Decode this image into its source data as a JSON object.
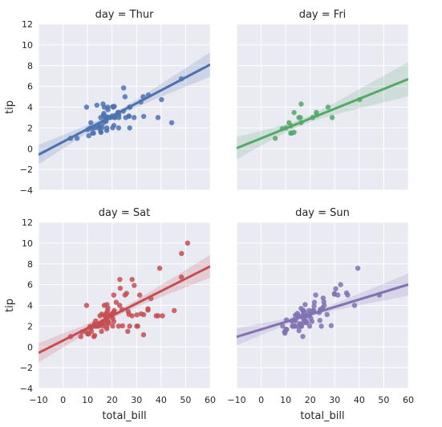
{
  "chart_data": {
    "type": "scatter",
    "style": {
      "panel_background": "#EAEAF2",
      "grid_color": "#ffffff",
      "grid": true
    },
    "shared_axes": {
      "xlabel": "total_bill",
      "ylabel": "tip",
      "xlim": [
        -10,
        60
      ],
      "ylim": [
        -4,
        12
      ],
      "xticks": [
        -10,
        0,
        10,
        20,
        30,
        40,
        50,
        60
      ],
      "yticks": [
        -4,
        -2,
        0,
        2,
        4,
        6,
        8,
        10,
        12
      ]
    },
    "panels": [
      {
        "title": "day = Thur",
        "color": "#4C72B0",
        "points": [
          [
            27.2,
            4.0
          ],
          [
            22.76,
            3.0
          ],
          [
            17.29,
            2.71
          ],
          [
            19.44,
            3.0
          ],
          [
            16.66,
            3.4
          ],
          [
            10.07,
            1.83
          ],
          [
            32.68,
            5.0
          ],
          [
            15.98,
            2.03
          ],
          [
            34.83,
            5.17
          ],
          [
            13.03,
            2.0
          ],
          [
            18.28,
            4.0
          ],
          [
            24.71,
            5.85
          ],
          [
            21.16,
            3.0
          ],
          [
            28.97,
            3.0
          ],
          [
            22.49,
            3.5
          ],
          [
            5.75,
            1.0
          ],
          [
            16.32,
            4.3
          ],
          [
            22.75,
            3.25
          ],
          [
            40.17,
            4.73
          ],
          [
            27.28,
            4.0
          ],
          [
            12.03,
            1.5
          ],
          [
            21.01,
            3.0
          ],
          [
            12.46,
            1.5
          ],
          [
            11.35,
            2.5
          ],
          [
            15.38,
            3.0
          ],
          [
            44.3,
            2.5
          ],
          [
            22.42,
            3.48
          ],
          [
            20.92,
            4.08
          ],
          [
            15.36,
            1.64
          ],
          [
            20.29,
            4.06
          ],
          [
            13.81,
            4.19
          ],
          [
            11.02,
            1.98
          ],
          [
            18.29,
            3.76
          ],
          [
            17.59,
            2.64
          ],
          [
            20.08,
            3.15
          ],
          [
            16.45,
            2.47
          ],
          [
            3.07,
            1.0
          ],
          [
            20.23,
            2.01
          ],
          [
            15.01,
            2.09
          ],
          [
            12.02,
            1.97
          ],
          [
            17.07,
            3.0
          ],
          [
            26.86,
            3.14
          ],
          [
            25.28,
            5.0
          ],
          [
            14.73,
            2.2
          ],
          [
            10.51,
            1.25
          ],
          [
            17.92,
            3.08
          ],
          [
            27.18,
            2.0
          ],
          [
            22.67,
            2.0
          ],
          [
            17.82,
            1.75
          ],
          [
            18.78,
            3.0
          ],
          [
            20.53,
            4.0
          ],
          [
            16.47,
            3.23
          ],
          [
            26.88,
            3.12
          ],
          [
            15.48,
            1.57
          ],
          [
            25.56,
            3.0
          ],
          [
            24.59,
            3.61
          ],
          [
            38.73,
            3.0
          ],
          [
            48.27,
            6.73
          ],
          [
            20.76,
            2.24
          ],
          [
            31.71,
            4.5
          ],
          [
            16.82,
            4.0
          ],
          [
            32.9,
            3.11
          ],
          [
            17.89,
            2.0
          ],
          [
            14.48,
            2.0
          ],
          [
            9.6,
            4.0
          ]
        ],
        "regression": {
          "intercept": 0.66,
          "slope": 0.124
        }
      },
      {
        "title": "day = Fri",
        "color": "#55A868",
        "points": [
          [
            28.97,
            3.0
          ],
          [
            22.49,
            3.5
          ],
          [
            5.75,
            1.0
          ],
          [
            16.32,
            4.3
          ],
          [
            22.75,
            3.25
          ],
          [
            40.17,
            4.73
          ],
          [
            27.28,
            4.0
          ],
          [
            12.03,
            1.5
          ],
          [
            21.01,
            3.0
          ],
          [
            12.46,
            1.5
          ],
          [
            11.35,
            2.5
          ],
          [
            15.38,
            3.0
          ],
          [
            12.16,
            2.2
          ],
          [
            13.42,
            3.48
          ],
          [
            8.58,
            1.92
          ],
          [
            15.98,
            3.0
          ],
          [
            13.42,
            1.58
          ],
          [
            16.27,
            2.5
          ],
          [
            10.09,
            2.0
          ]
        ],
        "regression": {
          "intercept": 1.0,
          "slope": 0.095
        }
      },
      {
        "title": "day = Sat",
        "color": "#C44E52",
        "points": [
          [
            20.65,
            3.35
          ],
          [
            17.92,
            4.08
          ],
          [
            20.29,
            2.75
          ],
          [
            15.77,
            2.23
          ],
          [
            39.42,
            7.58
          ],
          [
            19.82,
            3.18
          ],
          [
            17.81,
            2.34
          ],
          [
            13.37,
            2.0
          ],
          [
            12.69,
            2.0
          ],
          [
            21.7,
            4.3
          ],
          [
            19.65,
            3.0
          ],
          [
            9.55,
            1.45
          ],
          [
            18.35,
            2.5
          ],
          [
            15.06,
            3.0
          ],
          [
            20.69,
            2.45
          ],
          [
            17.78,
            3.27
          ],
          [
            24.06,
            3.6
          ],
          [
            16.31,
            2.0
          ],
          [
            16.93,
            3.07
          ],
          [
            18.69,
            2.31
          ],
          [
            31.27,
            5.0
          ],
          [
            16.04,
            2.24
          ],
          [
            38.01,
            3.0
          ],
          [
            26.41,
            1.5
          ],
          [
            11.24,
            1.76
          ],
          [
            48.27,
            6.73
          ],
          [
            20.29,
            3.21
          ],
          [
            13.81,
            2.0
          ],
          [
            11.02,
            1.98
          ],
          [
            18.29,
            3.76
          ],
          [
            17.59,
            2.64
          ],
          [
            20.08,
            3.15
          ],
          [
            16.45,
            2.47
          ],
          [
            3.07,
            1.0
          ],
          [
            20.23,
            2.01
          ],
          [
            15.01,
            2.09
          ],
          [
            12.02,
            1.97
          ],
          [
            17.07,
            3.0
          ],
          [
            26.86,
            3.14
          ],
          [
            25.28,
            5.0
          ],
          [
            14.73,
            2.2
          ],
          [
            10.51,
            1.25
          ],
          [
            17.92,
            3.08
          ],
          [
            27.18,
            2.0
          ],
          [
            22.67,
            2.0
          ],
          [
            17.82,
            1.75
          ],
          [
            18.78,
            3.0
          ],
          [
            50.81,
            10.0
          ],
          [
            15.81,
            3.16
          ],
          [
            7.25,
            1.0
          ],
          [
            31.85,
            3.18
          ],
          [
            16.82,
            4.0
          ],
          [
            32.9,
            3.11
          ],
          [
            17.89,
            2.0
          ],
          [
            14.48,
            2.0
          ],
          [
            9.6,
            4.0
          ],
          [
            34.63,
            3.55
          ],
          [
            34.65,
            3.68
          ],
          [
            23.33,
            5.65
          ],
          [
            45.35,
            3.5
          ],
          [
            23.17,
            6.5
          ],
          [
            40.55,
            3.0
          ],
          [
            20.69,
            5.0
          ],
          [
            20.9,
            3.5
          ],
          [
            30.46,
            2.0
          ],
          [
            18.15,
            3.5
          ],
          [
            23.1,
            4.0
          ],
          [
            15.69,
            1.5
          ],
          [
            26.59,
            3.41
          ],
          [
            38.73,
            3.0
          ],
          [
            24.27,
            2.03
          ],
          [
            12.76,
            2.23
          ],
          [
            30.06,
            2.0
          ],
          [
            25.89,
            5.16
          ],
          [
            48.33,
            9.0
          ],
          [
            13.27,
            2.5
          ],
          [
            28.17,
            6.5
          ],
          [
            12.9,
            1.1
          ],
          [
            28.15,
            3.0
          ],
          [
            11.59,
            1.5
          ],
          [
            7.74,
            1.44
          ],
          [
            30.14,
            3.09
          ],
          [
            10.07,
            1.25
          ],
          [
            12.6,
            1.0
          ],
          [
            32.83,
            1.17
          ],
          [
            35.83,
            4.67
          ],
          [
            29.03,
            5.92
          ]
        ],
        "regression": {
          "intercept": 0.62,
          "slope": 0.119
        }
      },
      {
        "title": "day = Sun",
        "color": "#8172B2",
        "points": [
          [
            16.99,
            1.01
          ],
          [
            10.34,
            1.66
          ],
          [
            21.01,
            3.5
          ],
          [
            23.68,
            3.31
          ],
          [
            24.59,
            3.61
          ],
          [
            25.29,
            4.71
          ],
          [
            8.77,
            2.0
          ],
          [
            26.88,
            3.12
          ],
          [
            15.04,
            1.96
          ],
          [
            14.78,
            3.23
          ],
          [
            10.27,
            1.71
          ],
          [
            35.26,
            5.0
          ],
          [
            15.42,
            1.57
          ],
          [
            18.43,
            3.0
          ],
          [
            14.83,
            3.02
          ],
          [
            21.58,
            3.92
          ],
          [
            10.33,
            1.67
          ],
          [
            16.29,
            3.71
          ],
          [
            16.97,
            3.5
          ],
          [
            20.65,
            3.35
          ],
          [
            17.92,
            4.08
          ],
          [
            20.29,
            2.75
          ],
          [
            15.77,
            2.23
          ],
          [
            39.42,
            7.58
          ],
          [
            19.82,
            3.18
          ],
          [
            17.81,
            2.34
          ],
          [
            13.37,
            2.0
          ],
          [
            12.69,
            2.0
          ],
          [
            21.7,
            4.3
          ],
          [
            19.65,
            3.0
          ],
          [
            9.55,
            1.45
          ],
          [
            18.35,
            2.5
          ],
          [
            15.06,
            3.0
          ],
          [
            20.69,
            2.45
          ],
          [
            17.78,
            3.27
          ],
          [
            24.06,
            3.6
          ],
          [
            16.31,
            2.0
          ],
          [
            16.93,
            3.07
          ],
          [
            18.69,
            2.31
          ],
          [
            31.27,
            5.0
          ],
          [
            16.04,
            2.24
          ],
          [
            17.46,
            2.54
          ],
          [
            13.94,
            3.06
          ],
          [
            9.68,
            1.32
          ],
          [
            30.4,
            5.6
          ],
          [
            18.29,
            3.0
          ],
          [
            22.23,
            5.0
          ],
          [
            32.4,
            6.0
          ],
          [
            28.55,
            2.05
          ],
          [
            18.04,
            3.0
          ],
          [
            12.54,
            2.5
          ],
          [
            10.29,
            2.6
          ],
          [
            34.81,
            5.2
          ],
          [
            9.94,
            1.56
          ],
          [
            25.56,
            4.34
          ],
          [
            19.49,
            3.51
          ],
          [
            38.07,
            4.0
          ],
          [
            23.95,
            2.55
          ],
          [
            25.71,
            4.0
          ],
          [
            17.31,
            3.5
          ],
          [
            29.93,
            5.07
          ],
          [
            14.07,
            2.5
          ],
          [
            13.13,
            2.0
          ],
          [
            17.26,
            2.74
          ],
          [
            24.55,
            2.0
          ],
          [
            19.77,
            2.0
          ],
          [
            29.85,
            5.14
          ],
          [
            48.17,
            5.0
          ],
          [
            25.0,
            3.75
          ],
          [
            13.39,
            2.61
          ],
          [
            16.49,
            2.0
          ],
          [
            21.5,
            3.5
          ],
          [
            12.66,
            2.5
          ],
          [
            16.21,
            2.0
          ],
          [
            13.81,
            2.0
          ],
          [
            17.51,
            3.0
          ]
        ],
        "regression": {
          "intercept": 1.69,
          "slope": 0.072
        }
      }
    ]
  }
}
